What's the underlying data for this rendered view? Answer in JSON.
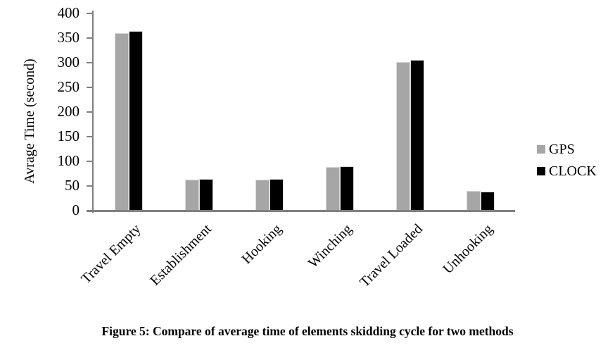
{
  "figure": {
    "caption": "Figure 5: Compare of average time of elements skidding cycle for two methods"
  },
  "chart_data": {
    "type": "bar",
    "title": "",
    "xlabel": "",
    "ylabel": "Avrage Time (second)",
    "ylim": [
      0,
      400
    ],
    "ytick_interval": 50,
    "yticks": [
      0,
      50,
      100,
      150,
      200,
      250,
      300,
      350,
      400
    ],
    "grid": false,
    "legend_position": "right",
    "categories": [
      "Travel Empty",
      "Establishment",
      "Hooking",
      "Winching",
      "Travel Loaded",
      "Unhooking"
    ],
    "series": [
      {
        "name": "GPS",
        "color": "#a6a6a6",
        "values": [
          360,
          63,
          63,
          88,
          302,
          40
        ]
      },
      {
        "name": "CLOCK",
        "color": "#000000",
        "values": [
          365,
          65,
          64,
          90,
          306,
          39
        ]
      }
    ]
  },
  "colors": {
    "axis": "#808080",
    "bar_outline": "#d9d9d9",
    "text": "#000000"
  }
}
